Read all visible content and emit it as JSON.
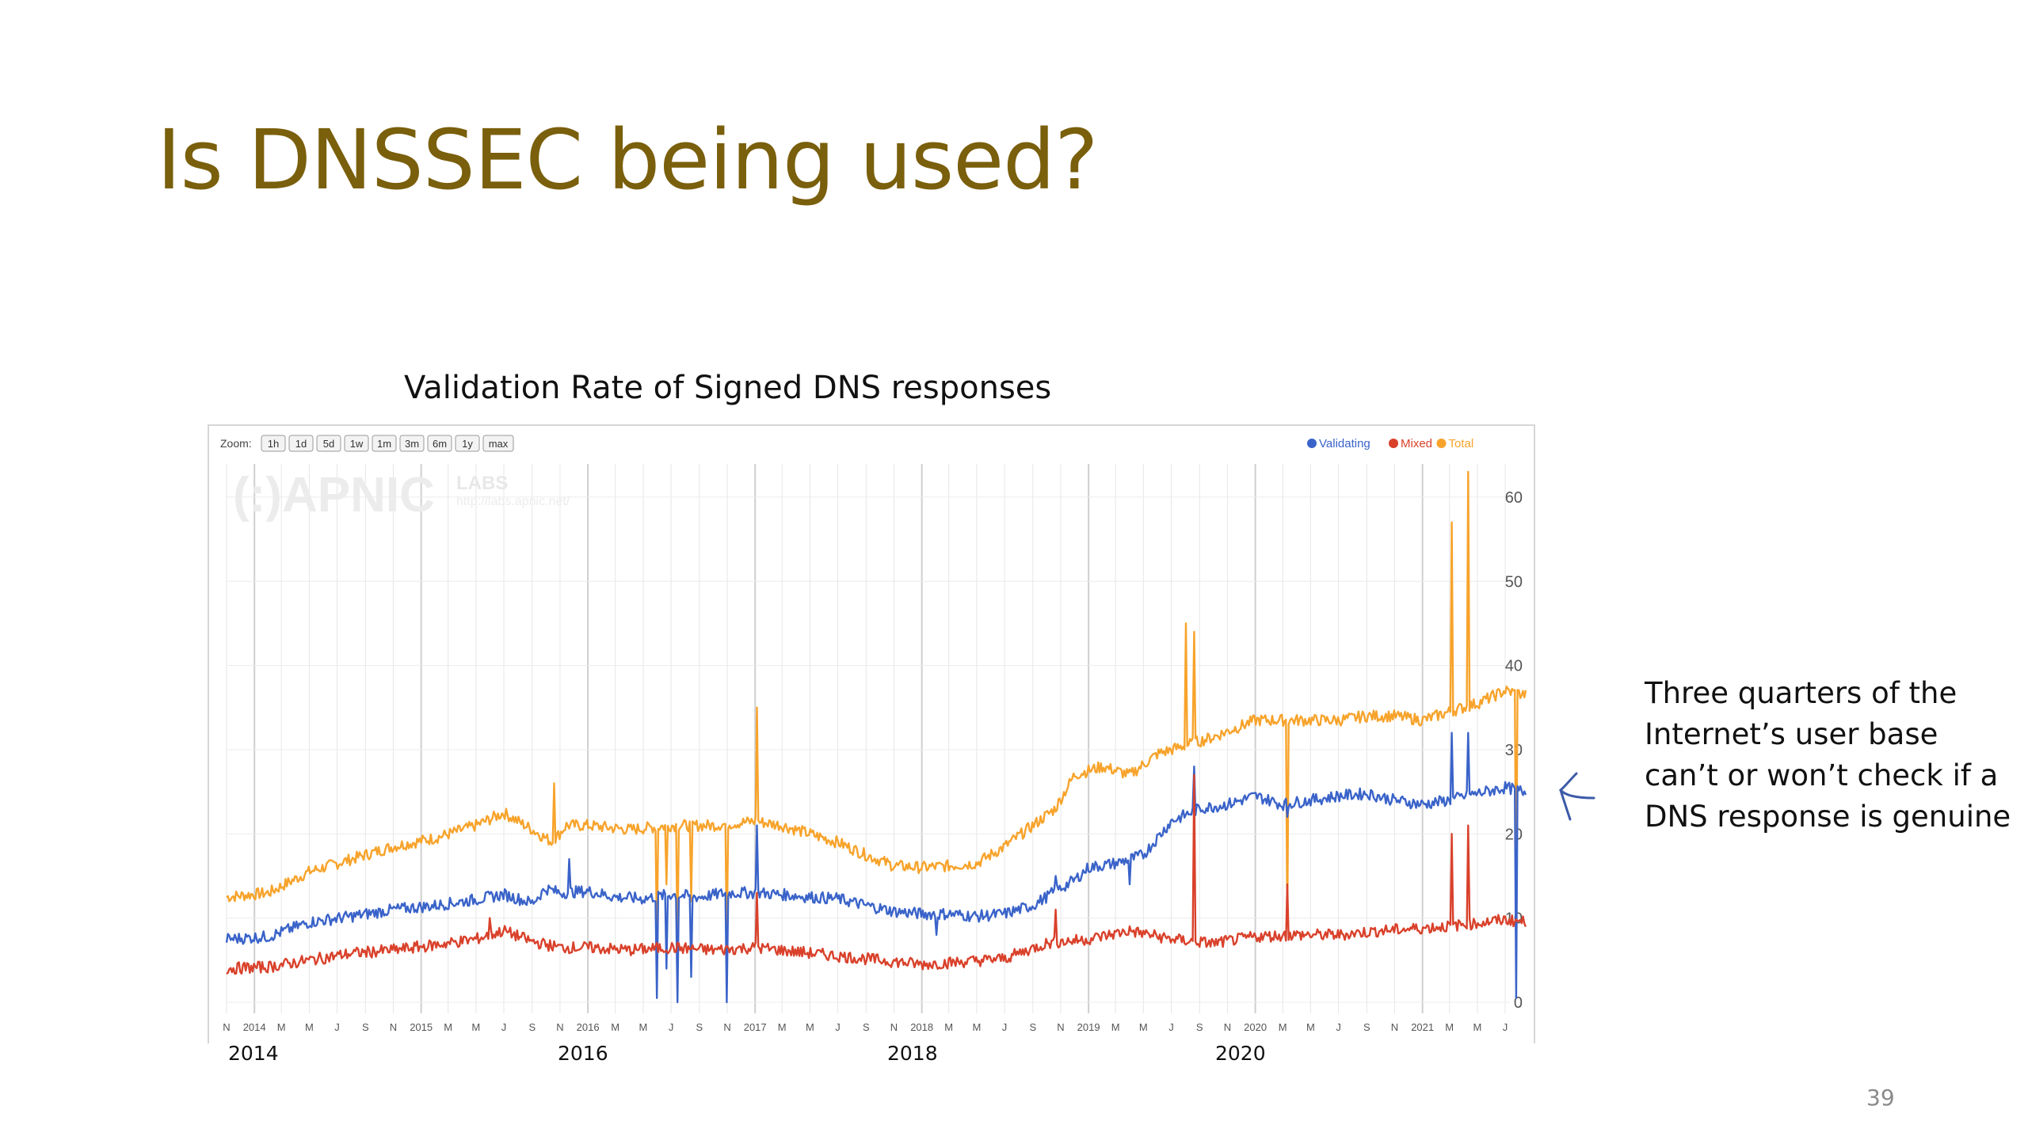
{
  "slide": {
    "title": "Is DNSSEC being used?",
    "page_number": "39",
    "annotation": "Three quarters of the Internet’s user base can’t or won’t check if a DNS response is genuine"
  },
  "chart_heading": "Validation Rate of Signed DNS responses",
  "year_labels": [
    "2014",
    "2016",
    "2018",
    "2020"
  ],
  "zoom": {
    "label": "Zoom:",
    "buttons": [
      "1h",
      "1d",
      "5d",
      "1w",
      "1m",
      "3m",
      "6m",
      "1y",
      "max"
    ]
  },
  "watermark": {
    "logo": "(:)APNIC",
    "labs": "LABS",
    "url": "http://labs.apnic.net/"
  },
  "chart_data": {
    "type": "line",
    "title": "Validation Rate of Signed DNS responses",
    "xlabel": "",
    "ylabel": "",
    "x_range": [
      "2013-11-01",
      "2021-08-15"
    ],
    "ylim": [
      0,
      63
    ],
    "y_ticks": [
      0,
      10,
      20,
      30,
      40,
      50,
      60
    ],
    "x_ticks": [
      {
        "date": "2013-11-01",
        "label": "N"
      },
      {
        "date": "2014-01-01",
        "label": "2014"
      },
      {
        "date": "2014-03-01",
        "label": "M"
      },
      {
        "date": "2014-05-01",
        "label": "M"
      },
      {
        "date": "2014-07-01",
        "label": "J"
      },
      {
        "date": "2014-09-01",
        "label": "S"
      },
      {
        "date": "2014-11-01",
        "label": "N"
      },
      {
        "date": "2015-01-01",
        "label": "2015"
      },
      {
        "date": "2015-03-01",
        "label": "M"
      },
      {
        "date": "2015-05-01",
        "label": "M"
      },
      {
        "date": "2015-07-01",
        "label": "J"
      },
      {
        "date": "2015-09-01",
        "label": "S"
      },
      {
        "date": "2015-11-01",
        "label": "N"
      },
      {
        "date": "2016-01-01",
        "label": "2016"
      },
      {
        "date": "2016-03-01",
        "label": "M"
      },
      {
        "date": "2016-05-01",
        "label": "M"
      },
      {
        "date": "2016-07-01",
        "label": "J"
      },
      {
        "date": "2016-09-01",
        "label": "S"
      },
      {
        "date": "2016-11-01",
        "label": "N"
      },
      {
        "date": "2017-01-01",
        "label": "2017"
      },
      {
        "date": "2017-03-01",
        "label": "M"
      },
      {
        "date": "2017-05-01",
        "label": "M"
      },
      {
        "date": "2017-07-01",
        "label": "J"
      },
      {
        "date": "2017-09-01",
        "label": "S"
      },
      {
        "date": "2017-11-01",
        "label": "N"
      },
      {
        "date": "2018-01-01",
        "label": "2018"
      },
      {
        "date": "2018-03-01",
        "label": "M"
      },
      {
        "date": "2018-05-01",
        "label": "M"
      },
      {
        "date": "2018-07-01",
        "label": "J"
      },
      {
        "date": "2018-09-01",
        "label": "S"
      },
      {
        "date": "2018-11-01",
        "label": "N"
      },
      {
        "date": "2019-01-01",
        "label": "2019"
      },
      {
        "date": "2019-03-01",
        "label": "M"
      },
      {
        "date": "2019-05-01",
        "label": "M"
      },
      {
        "date": "2019-07-01",
        "label": "J"
      },
      {
        "date": "2019-09-01",
        "label": "S"
      },
      {
        "date": "2019-11-01",
        "label": "N"
      },
      {
        "date": "2020-01-01",
        "label": "2020"
      },
      {
        "date": "2020-03-01",
        "label": "M"
      },
      {
        "date": "2020-05-01",
        "label": "M"
      },
      {
        "date": "2020-07-01",
        "label": "J"
      },
      {
        "date": "2020-09-01",
        "label": "S"
      },
      {
        "date": "2020-11-01",
        "label": "N"
      },
      {
        "date": "2021-01-01",
        "label": "2021"
      },
      {
        "date": "2021-03-01",
        "label": "M"
      },
      {
        "date": "2021-05-01",
        "label": "M"
      },
      {
        "date": "2021-07-01",
        "label": "J"
      }
    ],
    "legend_position": "top-right",
    "grid": true,
    "series": [
      {
        "name": "Validating",
        "color": "#3a63c9",
        "points": [
          [
            "2013-11-01",
            7.5
          ],
          [
            "2014-02-01",
            7.8
          ],
          [
            "2014-05-01",
            9.5
          ],
          [
            "2014-08-01",
            10.2
          ],
          [
            "2014-11-01",
            11.0
          ],
          [
            "2015-02-01",
            11.5
          ],
          [
            "2015-05-01",
            12.2
          ],
          [
            "2015-07-01",
            12.8
          ],
          [
            "2015-09-01",
            11.8
          ],
          [
            "2015-10-01",
            13.5
          ],
          [
            "2015-11-01",
            13.0
          ],
          [
            "2016-01-01",
            13.2
          ],
          [
            "2016-03-01",
            12.5
          ],
          [
            "2016-05-01",
            12.3
          ],
          [
            "2016-07-01",
            12.8
          ],
          [
            "2016-09-01",
            12.5
          ],
          [
            "2016-11-01",
            13.0
          ],
          [
            "2017-01-01",
            13.0
          ],
          [
            "2017-03-01",
            12.8
          ],
          [
            "2017-05-01",
            12.5
          ],
          [
            "2017-07-01",
            12.3
          ],
          [
            "2017-09-01",
            11.5
          ],
          [
            "2017-11-01",
            10.8
          ],
          [
            "2018-01-01",
            10.5
          ],
          [
            "2018-03-01",
            10.5
          ],
          [
            "2018-05-01",
            10.2
          ],
          [
            "2018-07-01",
            10.5
          ],
          [
            "2018-09-01",
            11.5
          ],
          [
            "2018-10-15",
            13.0
          ],
          [
            "2018-12-01",
            14.5
          ],
          [
            "2019-01-01",
            16.0
          ],
          [
            "2019-03-01",
            16.5
          ],
          [
            "2019-05-01",
            17.5
          ],
          [
            "2019-07-01",
            21.5
          ],
          [
            "2019-09-01",
            23.0
          ],
          [
            "2019-11-01",
            23.5
          ],
          [
            "2020-01-01",
            24.5
          ],
          [
            "2020-03-01",
            23.5
          ],
          [
            "2020-05-01",
            24.0
          ],
          [
            "2020-07-01",
            24.5
          ],
          [
            "2020-09-01",
            24.8
          ],
          [
            "2020-11-01",
            24.0
          ],
          [
            "2021-01-01",
            23.5
          ],
          [
            "2021-03-01",
            24.0
          ],
          [
            "2021-05-01",
            24.8
          ],
          [
            "2021-07-01",
            25.5
          ],
          [
            "2021-08-15",
            25.0
          ]
        ],
        "spikes": [
          [
            "2015-11-20",
            17
          ],
          [
            "2016-06-01",
            0.5
          ],
          [
            "2016-06-20",
            4
          ],
          [
            "2016-07-15",
            0
          ],
          [
            "2016-08-15",
            3
          ],
          [
            "2016-11-01",
            0
          ],
          [
            "2017-01-05",
            21
          ],
          [
            "2018-02-01",
            8
          ],
          [
            "2018-10-20",
            15
          ],
          [
            "2019-04-01",
            14
          ],
          [
            "2019-08-20",
            28
          ],
          [
            "2020-03-10",
            22
          ],
          [
            "2021-03-05",
            32
          ],
          [
            "2021-04-10",
            32
          ],
          [
            "2021-07-25",
            0.5
          ]
        ]
      },
      {
        "name": "Mixed",
        "color": "#d9412b",
        "points": [
          [
            "2013-11-01",
            4.0
          ],
          [
            "2014-02-01",
            4.2
          ],
          [
            "2014-05-01",
            5.0
          ],
          [
            "2014-08-01",
            5.8
          ],
          [
            "2014-11-01",
            6.2
          ],
          [
            "2015-02-01",
            6.8
          ],
          [
            "2015-05-01",
            7.5
          ],
          [
            "2015-07-01",
            8.5
          ],
          [
            "2015-09-01",
            7.2
          ],
          [
            "2015-11-01",
            6.5
          ],
          [
            "2016-01-01",
            6.5
          ],
          [
            "2016-04-01",
            6.2
          ],
          [
            "2016-07-01",
            6.5
          ],
          [
            "2016-10-01",
            6.2
          ],
          [
            "2017-01-01",
            6.5
          ],
          [
            "2017-04-01",
            6.0
          ],
          [
            "2017-07-01",
            5.5
          ],
          [
            "2017-10-01",
            5.0
          ],
          [
            "2018-01-01",
            4.5
          ],
          [
            "2018-04-01",
            4.8
          ],
          [
            "2018-07-01",
            5.2
          ],
          [
            "2018-10-01",
            7.0
          ],
          [
            "2019-01-01",
            7.5
          ],
          [
            "2019-04-01",
            8.5
          ],
          [
            "2019-07-01",
            7.5
          ],
          [
            "2019-10-01",
            7.0
          ],
          [
            "2020-01-01",
            7.8
          ],
          [
            "2020-04-01",
            8.0
          ],
          [
            "2020-07-01",
            8.0
          ],
          [
            "2020-10-01",
            8.5
          ],
          [
            "2021-01-01",
            8.8
          ],
          [
            "2021-04-01",
            9.2
          ],
          [
            "2021-07-01",
            9.8
          ],
          [
            "2021-08-15",
            9.5
          ]
        ],
        "spikes": [
          [
            "2015-06-01",
            10
          ],
          [
            "2017-01-05",
            13
          ],
          [
            "2018-10-20",
            11
          ],
          [
            "2019-08-20",
            27
          ],
          [
            "2020-03-10",
            14
          ],
          [
            "2021-03-05",
            20
          ],
          [
            "2021-04-10",
            21
          ]
        ]
      },
      {
        "name": "Total",
        "color": "#f7a32b",
        "points": [
          [
            "2013-11-01",
            12.5
          ],
          [
            "2014-02-01",
            13.0
          ],
          [
            "2014-05-01",
            15.5
          ],
          [
            "2014-08-01",
            17.0
          ],
          [
            "2014-11-01",
            18.5
          ],
          [
            "2015-02-01",
            19.5
          ],
          [
            "2015-05-01",
            21.0
          ],
          [
            "2015-07-01",
            22.5
          ],
          [
            "2015-09-01",
            20.5
          ],
          [
            "2015-10-15",
            19.0
          ],
          [
            "2015-11-15",
            21.0
          ],
          [
            "2016-01-01",
            21.0
          ],
          [
            "2016-04-01",
            20.5
          ],
          [
            "2016-07-01",
            21.0
          ],
          [
            "2016-10-01",
            21.0
          ],
          [
            "2017-01-01",
            21.5
          ],
          [
            "2017-03-01",
            21.0
          ],
          [
            "2017-05-01",
            20.0
          ],
          [
            "2017-07-01",
            19.0
          ],
          [
            "2017-09-01",
            17.5
          ],
          [
            "2017-11-01",
            16.2
          ],
          [
            "2018-01-01",
            16.0
          ],
          [
            "2018-03-01",
            16.2
          ],
          [
            "2018-05-01",
            16.5
          ],
          [
            "2018-07-01",
            18.5
          ],
          [
            "2018-09-01",
            21.0
          ],
          [
            "2018-10-20",
            23.0
          ],
          [
            "2018-12-01",
            27.0
          ],
          [
            "2019-02-01",
            28.0
          ],
          [
            "2019-04-01",
            27.0
          ],
          [
            "2019-06-01",
            29.5
          ],
          [
            "2019-08-01",
            30.5
          ],
          [
            "2019-10-01",
            31.5
          ],
          [
            "2020-01-01",
            33.5
          ],
          [
            "2020-03-01",
            33.5
          ],
          [
            "2020-05-01",
            33.5
          ],
          [
            "2020-07-01",
            33.5
          ],
          [
            "2020-09-01",
            34.0
          ],
          [
            "2020-11-01",
            34.0
          ],
          [
            "2021-01-01",
            33.5
          ],
          [
            "2021-03-01",
            34.5
          ],
          [
            "2021-05-01",
            35.5
          ],
          [
            "2021-07-01",
            37.0
          ],
          [
            "2021-08-15",
            36.5
          ]
        ],
        "spikes": [
          [
            "2015-10-20",
            26
          ],
          [
            "2016-06-01",
            7
          ],
          [
            "2016-06-20",
            14
          ],
          [
            "2016-07-15",
            7
          ],
          [
            "2016-08-15",
            12
          ],
          [
            "2016-11-01",
            7
          ],
          [
            "2017-01-05",
            35
          ],
          [
            "2019-08-01",
            45
          ],
          [
            "2019-08-20",
            44
          ],
          [
            "2020-03-10",
            9
          ],
          [
            "2021-03-05",
            57
          ],
          [
            "2021-04-10",
            63
          ],
          [
            "2021-07-25",
            10
          ]
        ]
      }
    ]
  }
}
